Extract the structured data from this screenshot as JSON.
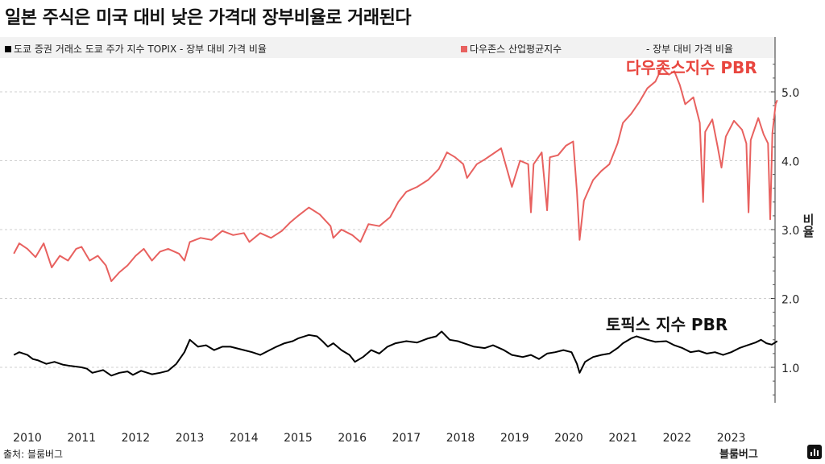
{
  "title": "일본 주식은 미국 대비 낮은 가격대 장부비율로 거래된다",
  "legend": {
    "black_label": "도쿄 증권 거래소 도쿄 주가 지수 TOPIX - 장부 대비 가격 비율",
    "red_label": "다우존스 산업평균지수",
    "red_suffix": "- 장부 대비 가격 비율"
  },
  "source": "출처: 블룸버그",
  "brand": "블룸버그",
  "colors": {
    "red": "#e8615f",
    "black": "#000000"
  },
  "icons": {
    "brand": "bar-chart-icon"
  },
  "chart_data": {
    "type": "line",
    "ylabel": "비율",
    "ylim": [
      0.5,
      5.5
    ],
    "yticks": [
      "1.0",
      "2.0",
      "3.0",
      "4.0",
      "5.0"
    ],
    "xticks": [
      "2010",
      "2011",
      "2012",
      "2013",
      "2014",
      "2015",
      "2016",
      "2017",
      "2018",
      "2019",
      "2020",
      "2021",
      "2022",
      "2023"
    ],
    "xlim": [
      2009.75,
      2023.85
    ],
    "series": [
      {
        "name": "다우존스지수 PBR",
        "color": "#e8615f",
        "points": [
          [
            2009.75,
            2.65
          ],
          [
            2009.85,
            2.8
          ],
          [
            2010.0,
            2.72
          ],
          [
            2010.15,
            2.6
          ],
          [
            2010.3,
            2.8
          ],
          [
            2010.45,
            2.45
          ],
          [
            2010.6,
            2.62
          ],
          [
            2010.75,
            2.55
          ],
          [
            2010.9,
            2.72
          ],
          [
            2011.0,
            2.75
          ],
          [
            2011.15,
            2.55
          ],
          [
            2011.3,
            2.62
          ],
          [
            2011.45,
            2.48
          ],
          [
            2011.55,
            2.25
          ],
          [
            2011.7,
            2.38
          ],
          [
            2011.85,
            2.48
          ],
          [
            2012.0,
            2.62
          ],
          [
            2012.15,
            2.72
          ],
          [
            2012.3,
            2.55
          ],
          [
            2012.45,
            2.68
          ],
          [
            2012.6,
            2.72
          ],
          [
            2012.8,
            2.65
          ],
          [
            2012.9,
            2.55
          ],
          [
            2013.0,
            2.82
          ],
          [
            2013.2,
            2.88
          ],
          [
            2013.4,
            2.85
          ],
          [
            2013.6,
            2.98
          ],
          [
            2013.8,
            2.92
          ],
          [
            2014.0,
            2.95
          ],
          [
            2014.1,
            2.82
          ],
          [
            2014.3,
            2.95
          ],
          [
            2014.5,
            2.88
          ],
          [
            2014.7,
            2.98
          ],
          [
            2014.85,
            3.1
          ],
          [
            2015.0,
            3.2
          ],
          [
            2015.2,
            3.32
          ],
          [
            2015.4,
            3.22
          ],
          [
            2015.6,
            3.05
          ],
          [
            2015.65,
            2.88
          ],
          [
            2015.8,
            3.0
          ],
          [
            2016.0,
            2.92
          ],
          [
            2016.15,
            2.82
          ],
          [
            2016.3,
            3.08
          ],
          [
            2016.5,
            3.05
          ],
          [
            2016.7,
            3.18
          ],
          [
            2016.85,
            3.4
          ],
          [
            2017.0,
            3.55
          ],
          [
            2017.2,
            3.62
          ],
          [
            2017.4,
            3.72
          ],
          [
            2017.6,
            3.88
          ],
          [
            2017.75,
            4.12
          ],
          [
            2017.9,
            4.05
          ],
          [
            2018.05,
            3.95
          ],
          [
            2018.12,
            3.75
          ],
          [
            2018.3,
            3.95
          ],
          [
            2018.45,
            4.02
          ],
          [
            2018.6,
            4.1
          ],
          [
            2018.75,
            4.18
          ],
          [
            2018.85,
            3.9
          ],
          [
            2018.95,
            3.62
          ],
          [
            2019.1,
            4.0
          ],
          [
            2019.25,
            3.95
          ],
          [
            2019.3,
            3.25
          ],
          [
            2019.35,
            3.95
          ],
          [
            2019.5,
            4.12
          ],
          [
            2019.6,
            3.28
          ],
          [
            2019.65,
            4.05
          ],
          [
            2019.8,
            4.08
          ],
          [
            2019.95,
            4.22
          ],
          [
            2020.08,
            4.28
          ],
          [
            2020.15,
            3.55
          ],
          [
            2020.2,
            2.85
          ],
          [
            2020.28,
            3.42
          ],
          [
            2020.45,
            3.72
          ],
          [
            2020.6,
            3.85
          ],
          [
            2020.75,
            3.95
          ],
          [
            2020.9,
            4.25
          ],
          [
            2021.0,
            4.55
          ],
          [
            2021.15,
            4.68
          ],
          [
            2021.3,
            4.85
          ],
          [
            2021.45,
            5.05
          ],
          [
            2021.6,
            5.15
          ],
          [
            2021.72,
            5.35
          ],
          [
            2021.85,
            5.25
          ],
          [
            2021.95,
            5.3
          ],
          [
            2022.05,
            5.1
          ],
          [
            2022.15,
            4.82
          ],
          [
            2022.3,
            4.92
          ],
          [
            2022.42,
            4.55
          ],
          [
            2022.48,
            3.4
          ],
          [
            2022.52,
            4.42
          ],
          [
            2022.65,
            4.6
          ],
          [
            2022.75,
            4.2
          ],
          [
            2022.82,
            3.9
          ],
          [
            2022.9,
            4.35
          ],
          [
            2023.05,
            4.58
          ],
          [
            2023.2,
            4.45
          ],
          [
            2023.28,
            4.25
          ],
          [
            2023.32,
            3.25
          ],
          [
            2023.36,
            4.3
          ],
          [
            2023.5,
            4.62
          ],
          [
            2023.6,
            4.38
          ],
          [
            2023.68,
            4.25
          ],
          [
            2023.72,
            3.15
          ],
          [
            2023.76,
            4.4
          ],
          [
            2023.82,
            4.82
          ],
          [
            2023.85,
            4.88
          ]
        ]
      },
      {
        "name": "토픽스 지수 PBR",
        "color": "#000000",
        "points": [
          [
            2009.75,
            1.18
          ],
          [
            2009.85,
            1.22
          ],
          [
            2010.0,
            1.18
          ],
          [
            2010.1,
            1.12
          ],
          [
            2010.2,
            1.1
          ],
          [
            2010.35,
            1.05
          ],
          [
            2010.5,
            1.08
          ],
          [
            2010.65,
            1.04
          ],
          [
            2010.8,
            1.02
          ],
          [
            2011.0,
            1.0
          ],
          [
            2011.1,
            0.98
          ],
          [
            2011.2,
            0.92
          ],
          [
            2011.4,
            0.96
          ],
          [
            2011.55,
            0.88
          ],
          [
            2011.7,
            0.92
          ],
          [
            2011.85,
            0.94
          ],
          [
            2011.95,
            0.89
          ],
          [
            2012.1,
            0.95
          ],
          [
            2012.3,
            0.9
          ],
          [
            2012.45,
            0.92
          ],
          [
            2012.6,
            0.95
          ],
          [
            2012.75,
            1.05
          ],
          [
            2012.9,
            1.22
          ],
          [
            2013.0,
            1.4
          ],
          [
            2013.15,
            1.3
          ],
          [
            2013.3,
            1.32
          ],
          [
            2013.45,
            1.25
          ],
          [
            2013.6,
            1.3
          ],
          [
            2013.75,
            1.3
          ],
          [
            2014.0,
            1.25
          ],
          [
            2014.15,
            1.22
          ],
          [
            2014.3,
            1.18
          ],
          [
            2014.45,
            1.24
          ],
          [
            2014.6,
            1.3
          ],
          [
            2014.75,
            1.35
          ],
          [
            2014.9,
            1.38
          ],
          [
            2015.0,
            1.42
          ],
          [
            2015.2,
            1.47
          ],
          [
            2015.35,
            1.45
          ],
          [
            2015.45,
            1.38
          ],
          [
            2015.55,
            1.3
          ],
          [
            2015.65,
            1.35
          ],
          [
            2015.8,
            1.25
          ],
          [
            2015.95,
            1.18
          ],
          [
            2016.05,
            1.08
          ],
          [
            2016.2,
            1.15
          ],
          [
            2016.35,
            1.25
          ],
          [
            2016.5,
            1.2
          ],
          [
            2016.65,
            1.3
          ],
          [
            2016.8,
            1.35
          ],
          [
            2017.0,
            1.38
          ],
          [
            2017.2,
            1.36
          ],
          [
            2017.4,
            1.42
          ],
          [
            2017.55,
            1.45
          ],
          [
            2017.65,
            1.52
          ],
          [
            2017.8,
            1.4
          ],
          [
            2017.95,
            1.38
          ],
          [
            2018.1,
            1.34
          ],
          [
            2018.25,
            1.3
          ],
          [
            2018.45,
            1.28
          ],
          [
            2018.6,
            1.32
          ],
          [
            2018.8,
            1.25
          ],
          [
            2018.95,
            1.18
          ],
          [
            2019.15,
            1.15
          ],
          [
            2019.3,
            1.18
          ],
          [
            2019.45,
            1.12
          ],
          [
            2019.6,
            1.2
          ],
          [
            2019.75,
            1.22
          ],
          [
            2019.9,
            1.25
          ],
          [
            2020.05,
            1.22
          ],
          [
            2020.15,
            1.05
          ],
          [
            2020.2,
            0.92
          ],
          [
            2020.3,
            1.08
          ],
          [
            2020.45,
            1.15
          ],
          [
            2020.6,
            1.18
          ],
          [
            2020.75,
            1.2
          ],
          [
            2020.9,
            1.28
          ],
          [
            2021.0,
            1.35
          ],
          [
            2021.15,
            1.42
          ],
          [
            2021.25,
            1.45
          ],
          [
            2021.45,
            1.4
          ],
          [
            2021.6,
            1.37
          ],
          [
            2021.8,
            1.38
          ],
          [
            2021.95,
            1.32
          ],
          [
            2022.1,
            1.28
          ],
          [
            2022.25,
            1.22
          ],
          [
            2022.4,
            1.24
          ],
          [
            2022.55,
            1.2
          ],
          [
            2022.7,
            1.22
          ],
          [
            2022.85,
            1.18
          ],
          [
            2023.0,
            1.22
          ],
          [
            2023.15,
            1.28
          ],
          [
            2023.3,
            1.32
          ],
          [
            2023.45,
            1.36
          ],
          [
            2023.55,
            1.4
          ],
          [
            2023.65,
            1.35
          ],
          [
            2023.75,
            1.33
          ],
          [
            2023.85,
            1.38
          ]
        ]
      }
    ],
    "annotations": [
      "다우존스지수 PBR",
      "토픽스 지수 PBR"
    ]
  }
}
